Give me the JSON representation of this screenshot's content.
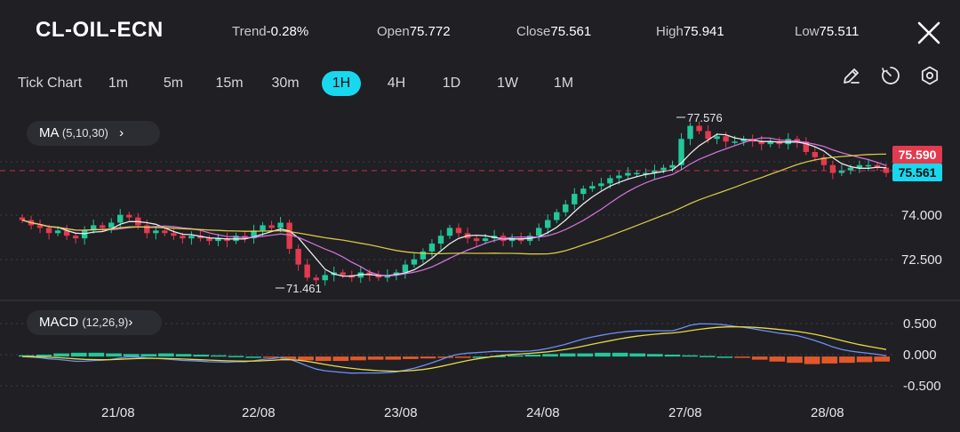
{
  "header": {
    "symbol": "CL-OIL-ECN",
    "trend_label": "Trend",
    "trend_value": "-0.28%",
    "open_label": "Open",
    "open_value": "75.772",
    "close_label": "Close",
    "close_value": "75.561",
    "high_label": "High",
    "high_value": "75.941",
    "low_label": "Low",
    "low_value": "75.511"
  },
  "timeframes": [
    "Tick Chart",
    "1m",
    "5m",
    "15m",
    "30m",
    "1H",
    "4H",
    "1D",
    "1W",
    "1M"
  ],
  "active_timeframe": "1H",
  "tools": [
    "pencil-icon",
    "timer-icon",
    "settings-icon"
  ],
  "indicators": {
    "ma_label": "MA",
    "ma_params": "(5,10,30)",
    "macd_label": "MACD",
    "macd_params": "(12,26,9)"
  },
  "price_axis": [
    "74.000",
    "72.500"
  ],
  "price_tags": {
    "upper": "75.590",
    "current": "75.561"
  },
  "macd_axis": [
    "0.500",
    "0.000",
    "-0.500"
  ],
  "annotations": {
    "max_label": "77.576",
    "min_label": "71.461"
  },
  "colors": {
    "accent": "#17d8ef",
    "up": "#22c79a",
    "down": "#e23a4e",
    "ma5": "#ffffff",
    "ma10": "#e07ae8",
    "ma30": "#e8d84a",
    "macd_pos": "#22c79a",
    "macd_neg": "#e2582a",
    "macd_dif": "#6f8ff0",
    "macd_dea": "#e8d84a"
  },
  "chart_data": {
    "type": "candlestick",
    "x_labels": [
      "21/08",
      "22/08",
      "23/08",
      "24/08",
      "27/08",
      "28/08"
    ],
    "price_range": [
      71.0,
      78.2
    ],
    "close_series": [
      73.8,
      73.6,
      73.5,
      73.3,
      73.4,
      73.2,
      73.1,
      73.4,
      73.6,
      73.5,
      73.7,
      74.0,
      73.9,
      73.6,
      73.3,
      73.4,
      73.3,
      73.2,
      73.1,
      73.2,
      73.1,
      73.0,
      73.1,
      73.0,
      73.2,
      73.1,
      73.4,
      73.6,
      73.5,
      73.7,
      72.7,
      72.1,
      71.6,
      71.5,
      71.7,
      71.8,
      71.7,
      71.6,
      71.8,
      71.7,
      71.6,
      71.7,
      71.8,
      72.1,
      72.3,
      72.6,
      72.9,
      73.2,
      73.5,
      73.3,
      73.1,
      73.0,
      73.1,
      73.2,
      73.0,
      73.1,
      73.0,
      73.2,
      73.5,
      73.8,
      74.1,
      74.4,
      74.8,
      75.0,
      75.1,
      75.2,
      75.4,
      75.5,
      75.6,
      75.6,
      75.6,
      75.7,
      75.8,
      75.9,
      76.9,
      77.4,
      77.2,
      76.9,
      77.0,
      76.8,
      76.8,
      76.9,
      76.8,
      76.7,
      76.8,
      76.7,
      76.9,
      76.8,
      76.4,
      76.2,
      75.9,
      75.6,
      75.7,
      75.8,
      75.9,
      75.9,
      75.8,
      75.6
    ],
    "macd_range": [
      -0.62,
      0.75
    ],
    "macd_histogram": [
      0.02,
      0.03,
      0.05,
      0.06,
      0.06,
      0.05,
      0.04,
      0.04,
      0.05,
      0.04,
      0.03,
      0.02,
      0.01,
      0.0,
      -0.02,
      -0.04,
      -0.06,
      -0.07,
      -0.07,
      -0.06,
      -0.05,
      -0.05,
      -0.04,
      -0.03,
      -0.02,
      -0.01,
      0.0,
      0.01,
      0.02,
      0.03,
      0.04,
      0.05,
      0.05,
      0.06,
      0.06,
      0.05,
      0.04,
      0.03,
      0.02,
      0.01,
      0.0,
      -0.02,
      -0.05,
      -0.08,
      -0.1,
      -0.12,
      -0.11,
      -0.1,
      -0.09,
      -0.08
    ]
  }
}
